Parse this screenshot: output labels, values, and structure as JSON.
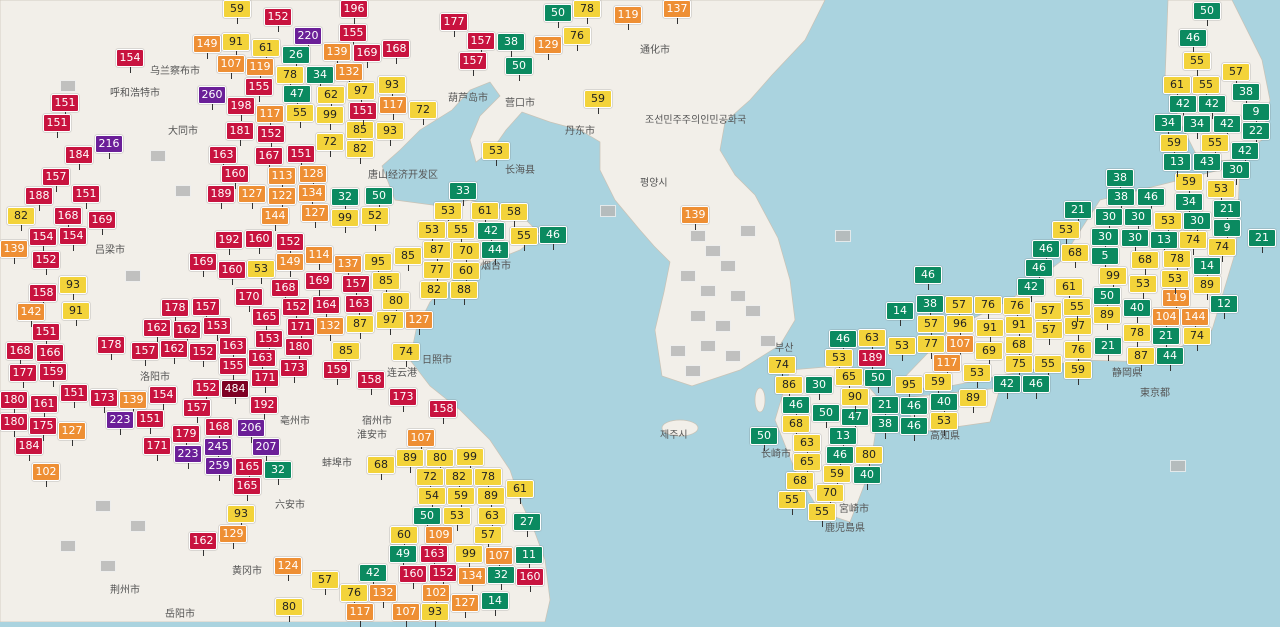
{
  "colors": {
    "good": "#0b8a60",
    "moderate": "#f3d33a",
    "usg": "#ee8f34",
    "unhealthy": "#c8133f",
    "very_unhealthy": "#6b1f98",
    "hazardous": "#7e0023",
    "no_data": "#b8b8b8",
    "land": "#f2efe9",
    "sea": "#aad3df"
  },
  "place_labels": [
    "乌兰察布市",
    "呼和浩特市",
    "大同市",
    "葫芦岛市",
    "营口市",
    "丹东市",
    "通化市",
    "조선민주주의인민공화국",
    "평양시",
    "唐山经济开发区",
    "长海县",
    "吕梁市",
    "洛阳市",
    "亳州市",
    "宿州市",
    "淮安市",
    "蚌埠市",
    "六安市",
    "黄冈市",
    "岳阳市",
    "荆州市",
    "长崎市",
    "宮崎市",
    "鹿児島県",
    "静岡県",
    "東京都",
    "高知県",
    "부산",
    "제주시",
    "烟台市",
    "日照市",
    "连云港"
  ],
  "stations": [
    59,
    152,
    196,
    177,
    50,
    78,
    119,
    137,
    155,
    149,
    91,
    220,
    139,
    168,
    157,
    38,
    129,
    76,
    154,
    61,
    26,
    107,
    169,
    157,
    50,
    119,
    78,
    34,
    132,
    260,
    155,
    47,
    62,
    97,
    93,
    198,
    55,
    117,
    99,
    85,
    151,
    117,
    72,
    151,
    151,
    216,
    181,
    152,
    72,
    82,
    93,
    184,
    163,
    167,
    151,
    157,
    160,
    113,
    128,
    151,
    188,
    189,
    127,
    122,
    134,
    32,
    50,
    82,
    168,
    169,
    144,
    127,
    99,
    52,
    53,
    61,
    58,
    33,
    154,
    154,
    139,
    192,
    160,
    152,
    55,
    53,
    55,
    46,
    87,
    70,
    42,
    44,
    152,
    169,
    149,
    114,
    137,
    95,
    85,
    77,
    60,
    160,
    53,
    93,
    158,
    91,
    178,
    157,
    170,
    168,
    169,
    157,
    85,
    82,
    88,
    80,
    163,
    164,
    152,
    142,
    151,
    162,
    162,
    153,
    165,
    171,
    132,
    87,
    97,
    127,
    178,
    157,
    152,
    163,
    153,
    180,
    85,
    74,
    168,
    166,
    162,
    155,
    163,
    173,
    177,
    159,
    159,
    484,
    154,
    152,
    171,
    158,
    151,
    173,
    180,
    161,
    139,
    192,
    157,
    223,
    151,
    173,
    158,
    180,
    184,
    127,
    175,
    179,
    168,
    206,
    171,
    223,
    245,
    207,
    259,
    165,
    107,
    68,
    89,
    80,
    99,
    78,
    61,
    102,
    32,
    165,
    72,
    82,
    89,
    93,
    129,
    54,
    59,
    63,
    27,
    162,
    50,
    53,
    57,
    60,
    109,
    99,
    107,
    11,
    163,
    124,
    57,
    42,
    49,
    152,
    134,
    32,
    160,
    160,
    132,
    76,
    80,
    102,
    127,
    14,
    117,
    107,
    93,
    59,
    53,
    139,
    50,
    46,
    55,
    57,
    61,
    55,
    38,
    42,
    42,
    9,
    34,
    34,
    42,
    22,
    59,
    55,
    42,
    59,
    53,
    13,
    43,
    30,
    38,
    38,
    46,
    34,
    21,
    30,
    30,
    53,
    30,
    9,
    21,
    53,
    13,
    30,
    30,
    21,
    74,
    74,
    46,
    68,
    5,
    68,
    78,
    14,
    99,
    53,
    119,
    89,
    46,
    46,
    61,
    50,
    53,
    12,
    42,
    97,
    89,
    40,
    144,
    104,
    74,
    55,
    57,
    14,
    38,
    57,
    76,
    76,
    78,
    21,
    57,
    96,
    91,
    91,
    57,
    63,
    53,
    77,
    107,
    69,
    68,
    76,
    21,
    87,
    44,
    46,
    189,
    117,
    75,
    55,
    59,
    74,
    53,
    50,
    95,
    59,
    53,
    42,
    46,
    86,
    65,
    30,
    21,
    46,
    40,
    89,
    50,
    46,
    47,
    90,
    53,
    38,
    50,
    68,
    13,
    46,
    63,
    46,
    80,
    65,
    68,
    40,
    59,
    70,
    55,
    55
  ]
}
